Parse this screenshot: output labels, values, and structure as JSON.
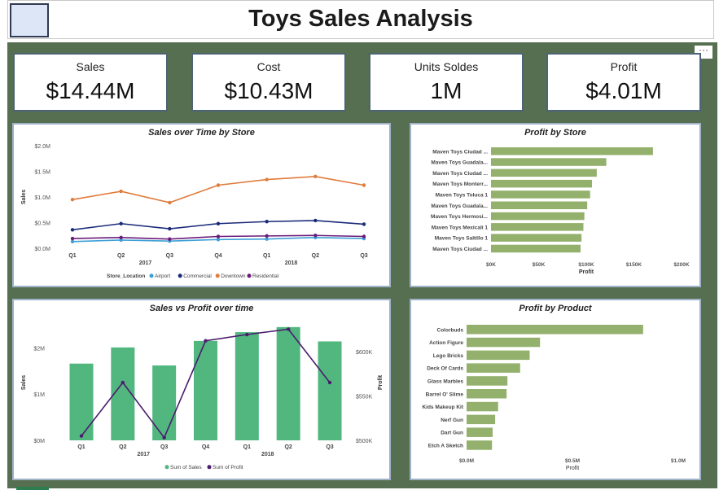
{
  "header": {
    "title": "Toys Sales Analysis",
    "more_label": "···"
  },
  "kpis": [
    {
      "label": "Sales",
      "value": "$14.44M"
    },
    {
      "label": "Cost",
      "value": "$10.43M"
    },
    {
      "label": "Units Soldes",
      "value": "1M"
    },
    {
      "label": "Profit",
      "value": "$4.01M"
    }
  ],
  "colors": {
    "canvas": "#566f51",
    "green_bar": "#52b77f",
    "olive_bar": "#93b06c",
    "airport": "#3d9fd6",
    "commercial": "#1a2b7a",
    "downtown": "#e07b3c",
    "residential": "#6a1b7a",
    "profit_line": "#4b1c6e"
  },
  "chart_data": [
    {
      "type": "line",
      "title": "Sales over Time by Store",
      "ylabel": "Sales",
      "x": [
        "Q1",
        "Q2",
        "Q3",
        "Q4",
        "Q1",
        "Q2",
        "Q3"
      ],
      "year_labels": [
        "2017",
        "2018"
      ],
      "yticks": [
        "$0.0M",
        "$0.5M",
        "$1.0M",
        "$1.5M",
        "$2.0M"
      ],
      "ylim": [
        0,
        2000000
      ],
      "legend_title": "Store_Location",
      "series": [
        {
          "name": "Airport",
          "values": [
            130000,
            160000,
            140000,
            170000,
            180000,
            210000,
            190000
          ]
        },
        {
          "name": "Commercial",
          "values": [
            360000,
            480000,
            380000,
            480000,
            520000,
            540000,
            470000
          ]
        },
        {
          "name": "Downtown",
          "values": [
            950000,
            1110000,
            890000,
            1230000,
            1340000,
            1400000,
            1230000
          ]
        },
        {
          "name": "Residential",
          "values": [
            190000,
            210000,
            180000,
            230000,
            240000,
            250000,
            230000
          ]
        }
      ]
    },
    {
      "type": "bar",
      "title": "Profit by Store",
      "xlabel": "Profit",
      "categories": [
        "Maven Toys Ciudad ...",
        "Maven Toys Guadala...",
        "Maven Toys Ciudad ...",
        "Maven Toys Monterr...",
        "Maven Toys Toluca 1",
        "Maven Toys Guadala...",
        "Maven Toys Hermosi...",
        "Maven Toys Mexicali 1",
        "Maven Toys Saltillo 1",
        "Maven Toys Ciudad ..."
      ],
      "values": [
        170000,
        121000,
        111000,
        106000,
        104000,
        101000,
        98000,
        97000,
        95000,
        94000
      ],
      "xticks": [
        "$0K",
        "$50K",
        "$100K",
        "$150K",
        "$200K"
      ],
      "xlim": [
        0,
        200000
      ]
    },
    {
      "type": "bar",
      "title": "Sales vs Profit over time",
      "ylabel": "Sales",
      "y2label": "Profit",
      "categories": [
        "Q1",
        "Q2",
        "Q3",
        "Q4",
        "Q1",
        "Q2",
        "Q3"
      ],
      "year_labels": [
        "2017",
        "2018"
      ],
      "yticks": [
        "$0M",
        "$1M",
        "$2M"
      ],
      "ylim": [
        0,
        2500000
      ],
      "y2ticks": [
        "$500K",
        "$550K",
        "$600K"
      ],
      "y2lim": [
        500000,
        630000
      ],
      "legend": [
        "Sum of Sales",
        "Sum of Profit"
      ],
      "series": [
        {
          "name": "Sum of Sales",
          "values": [
            1660000,
            2010000,
            1620000,
            2150000,
            2340000,
            2450000,
            2140000
          ]
        },
        {
          "name": "Sum of Profit",
          "values": [
            505000,
            565000,
            503000,
            612000,
            619000,
            625000,
            565000
          ]
        }
      ]
    },
    {
      "type": "bar",
      "title": "Profit by Product",
      "xlabel": "Profit",
      "categories": [
        "Colorbuds",
        "Action Figure",
        "Lego Bricks",
        "Deck Of Cards",
        "Glass Marbles",
        "Barrel O' Slime",
        "Kids Makeup Kit",
        "Nerf Gun",
        "Dart Gun",
        "Etch A Sketch"
      ],
      "values": [
        834000,
        347000,
        298000,
        253000,
        193000,
        189000,
        149000,
        135000,
        123000,
        120000
      ],
      "xticks": [
        "$0.0M",
        "$0.5M",
        "$1.0M"
      ],
      "xlim": [
        0,
        1000000
      ]
    }
  ]
}
